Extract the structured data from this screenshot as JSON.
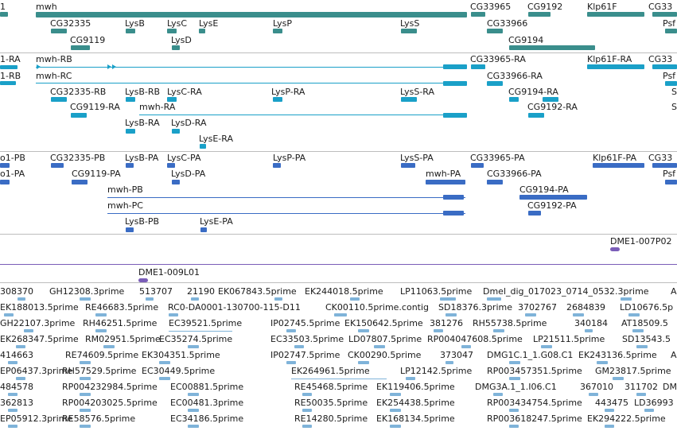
{
  "colors": {
    "gene": "#3a8e8c",
    "transcript": "#1aa0c8",
    "cds": "#3a6cc4",
    "clone": "#7a5db8",
    "est": "#7fb3d9",
    "divider": "#bdbdbd"
  },
  "tracks": {
    "genes": {
      "labels": [
        "1",
        "mwh",
        "CG32335",
        "LysB",
        "LysC",
        "LysE",
        "LysP",
        "LysS",
        "CG33965",
        "CG9192",
        "Klp61F",
        "CG33",
        "CG9119",
        "LysD",
        "CG33966",
        "Psf",
        "CG9194"
      ]
    },
    "transcripts": {
      "labels": [
        "1-RA",
        "mwh-RB",
        "CG33965-RA",
        "Klp61F-RA",
        "CG33",
        "1-RB",
        "mwh-RC",
        "CG33966-RA",
        "Psf",
        "CG32335-RB",
        "LysB-RB",
        "LysC-RA",
        "LysP-RA",
        "LysS-RA",
        "CG9194-RA",
        "S",
        "CG9119-RA",
        "mwh-RA",
        "CG9192-RA",
        "S",
        "LysB-RA",
        "LysD-RA",
        "LysE-RA"
      ]
    },
    "proteins": {
      "labels": [
        "o1-PB",
        "CG32335-PB",
        "LysB-PA",
        "LysC-PA",
        "LysP-PA",
        "LysS-PA",
        "CG33965-PA",
        "Klp61F-PA",
        "CG33",
        "o1-PA",
        "CG9119-PA",
        "LysD-PA",
        "mwh-PA",
        "CG33966-PA",
        "Psf",
        "mwh-PB",
        "CG9194-PA",
        "mwh-PC",
        "CG9192-PA",
        "LysB-PB",
        "LysE-PA"
      ]
    },
    "clones": {
      "labels": [
        "DME1-007P02",
        "DME1-009L01"
      ]
    },
    "ests": {
      "labels": [
        "308370",
        "GH12308.3prime",
        "513707",
        "21190",
        "EK067843.5prime",
        "EK244018.5prime",
        "LP11063.5prime",
        "Dmel_dig_017023_0714_0532.3prime",
        "A",
        "EK188013.5prime",
        "RE46683.5prime",
        "RC0-DA0001-130700-115-D11",
        "CK00110.5prime.contig",
        "SD18376.3prime",
        "3702767",
        "2684839",
        "LD10676.5p",
        "GH22107.3prime",
        "RH46251.5prime",
        "EC39521.5prime",
        "IP02745.5prime",
        "EK150642.5prime",
        "381276",
        "RH55738.5prime",
        "340184",
        "AT18509.5",
        "EK268347.5prime",
        "RM02951.5prime",
        "EC35274.5prime",
        "EC33503.5prime",
        "LD07807.5prime",
        "RP004047608.5prime",
        "LP21511.5prime",
        "SD13543.5",
        "414663",
        "RE74609.5prime",
        "EK304351.5prime",
        "IP02747.5prime",
        "CK00290.5prime",
        "373047",
        "DMG1C.1_1.G08.C1",
        "EK243136.5prime",
        "A",
        "EP06437.3prime",
        "RH57529.5prime",
        "EC30449.5prime",
        "EK264961.5prime",
        "LP12142.5prime",
        "RP003457351.5prime",
        "GM23817.5prime",
        "484578",
        "RP004232984.5prime",
        "EC00881.5prime",
        "RE45468.5prime",
        "EK119406.5prime",
        "DMG3A.1_1.I06.C1",
        "367010",
        "311702",
        "DM",
        "362813",
        "RP004203025.5prime",
        "EC00481.3prime",
        "RE50035.5prime",
        "EK254438.5prime",
        "RP003434754.5prime",
        "443475",
        "LD36993",
        "EP05912.3prime",
        "RE58576.5prime",
        "EC34186.5prime",
        "RE14280.5prime",
        "EK168134.5prime",
        "RP003618247.5prime",
        "EK294222.5prime"
      ]
    }
  }
}
